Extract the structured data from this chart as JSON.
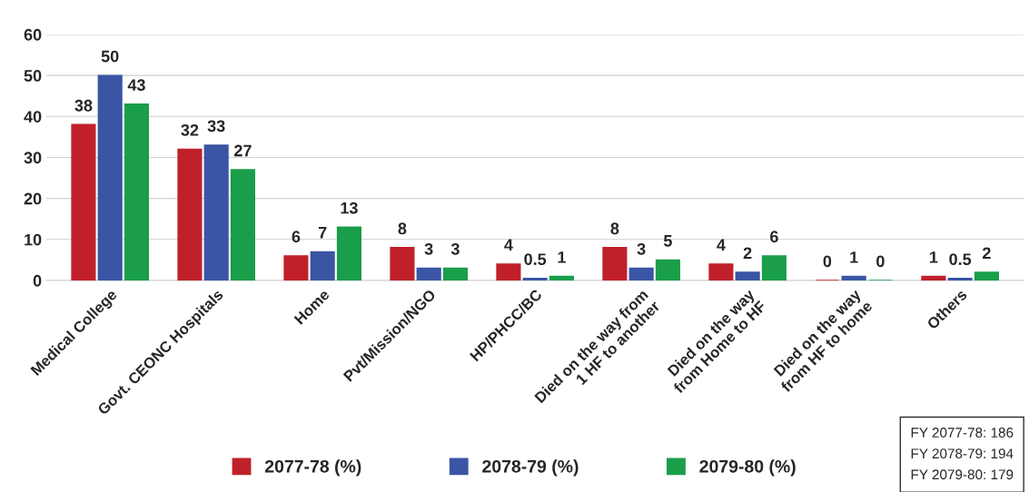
{
  "chart_data": {
    "type": "bar",
    "categories": [
      "Medical College",
      "Govt. CEONC Hospitals",
      "Home",
      "Pvt/Mission/NGO",
      "HP/PHCC/BC",
      "Died on the way from\n1 HF to another",
      "Died on the way\nfrom Home to HF",
      "Died on the way\nfrom HF to home",
      "Others"
    ],
    "series": [
      {
        "name": "2077-78 (%)",
        "color": "#c0202a",
        "values": [
          38,
          32,
          6,
          8,
          4,
          8,
          4,
          0,
          1
        ]
      },
      {
        "name": "2078-79 (%)",
        "color": "#3a55a4",
        "values": [
          50,
          33,
          7,
          3,
          0.5,
          3,
          2,
          1,
          0.5
        ]
      },
      {
        "name": "2079-80 (%)",
        "color": "#1a9e4a",
        "values": [
          43,
          27,
          13,
          3,
          1,
          5,
          6,
          0,
          2
        ]
      }
    ],
    "ylim": [
      0,
      60
    ],
    "yticks": [
      0,
      10,
      20,
      30,
      40,
      50,
      60
    ],
    "grid": "y",
    "legend": "bottom",
    "data_labels": true,
    "annotations": [
      "FY 2077-78: 186\nFY 2078-79: 194\nFY 2079-80: 179"
    ]
  }
}
